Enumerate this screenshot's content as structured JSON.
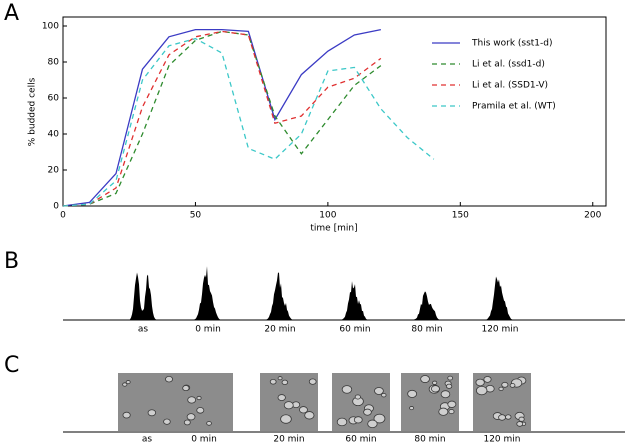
{
  "chart_data": {
    "type": "line",
    "xlabel": "time [min]",
    "ylabel": "% budded cells",
    "x": [
      0,
      10,
      20,
      30,
      40,
      50,
      60,
      70,
      80,
      90,
      100,
      110,
      120,
      130,
      140
    ],
    "series": [
      {
        "name": "This work (sst1-d)",
        "color": "#3b3bc4",
        "linestyle": "solid",
        "values": [
          0,
          2,
          18,
          76,
          94,
          98,
          98,
          97,
          48,
          73,
          86,
          95,
          98,
          null,
          null
        ]
      },
      {
        "name": "Li et al. (ssd1-d)",
        "color": "#2e8b2e",
        "linestyle": "dashed",
        "values": [
          0,
          1,
          7,
          40,
          78,
          92,
          97,
          95,
          50,
          29,
          48,
          67,
          78,
          null,
          null
        ]
      },
      {
        "name": "Li et al. (SSD1-V)",
        "color": "#e03030",
        "linestyle": "dashed",
        "values": [
          0,
          1,
          10,
          55,
          84,
          94,
          97,
          95,
          46,
          50,
          66,
          71,
          82,
          null,
          null
        ]
      },
      {
        "name": "Pramila et al. (WT)",
        "color": "#3cc8c8",
        "linestyle": "dashed",
        "values": [
          0,
          1,
          14,
          70,
          89,
          93,
          85,
          32,
          26,
          40,
          75,
          77,
          54,
          38,
          26
        ]
      }
    ],
    "xlim": [
      0,
      205
    ],
    "ylim": [
      0,
      105
    ],
    "xticks": [
      0,
      50,
      100,
      150,
      200
    ],
    "yticks": [
      0,
      20,
      40,
      60,
      80,
      100
    ],
    "legend": "upper right"
  },
  "panel_labels": [
    "A",
    "B",
    "C"
  ],
  "histogram_panel": {
    "conditions": [
      "as",
      "0 min",
      "20 min",
      "60 min",
      "80 min",
      "120 min"
    ]
  },
  "image_panel": {
    "conditions": [
      "as",
      "0 min",
      "20 min",
      "60 min",
      "80 min",
      "120 min"
    ]
  }
}
